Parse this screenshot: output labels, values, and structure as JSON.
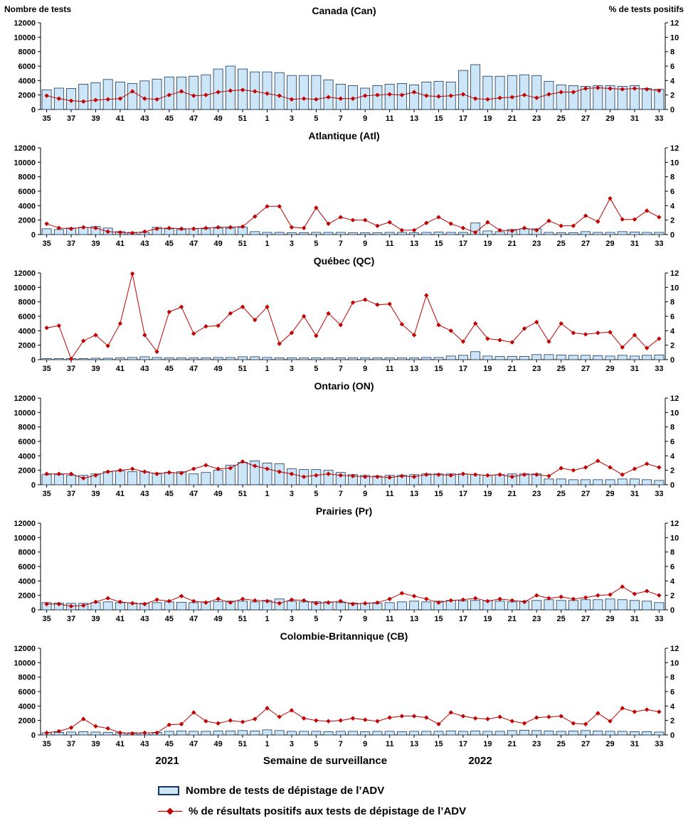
{
  "header": {
    "left_label": "Nombre de tests",
    "right_label": "% de tests positifs"
  },
  "footer": {
    "year_left": "2021",
    "axis_label": "Semaine de surveillance",
    "year_right": "2022"
  },
  "legend": {
    "items": [
      {
        "type": "bar",
        "label": "Nombre de tests de dépistage de l’ADV"
      },
      {
        "type": "line",
        "label": "% de résultats positifs aux tests de dépistage de l’ADV"
      }
    ]
  },
  "colors": {
    "bar_fill": "#CDE6F7",
    "bar_stroke": "#17375E",
    "line": "#C00000",
    "axis": "#000000"
  },
  "chart_data": {
    "type": "bar+line",
    "layout": "6 stacked small-multiple panels, shared x axis of surveillance weeks 35 (2021) to 33 (2022)",
    "x_weeks": [
      35,
      36,
      37,
      38,
      39,
      40,
      41,
      42,
      43,
      44,
      45,
      46,
      47,
      48,
      49,
      50,
      51,
      52,
      1,
      2,
      3,
      4,
      5,
      6,
      7,
      8,
      9,
      10,
      11,
      12,
      13,
      14,
      15,
      16,
      17,
      18,
      19,
      20,
      21,
      22,
      23,
      24,
      25,
      26,
      27,
      28,
      29,
      30,
      31,
      32,
      33
    ],
    "x_tick_labels": [
      "35",
      "37",
      "39",
      "41",
      "43",
      "45",
      "47",
      "49",
      "51",
      "1",
      "3",
      "5",
      "7",
      "9",
      "11",
      "13",
      "15",
      "17",
      "19",
      "21",
      "23",
      "25",
      "27",
      "29",
      "31",
      "33"
    ],
    "left_axis": {
      "label": "Nombre de tests",
      "min": 0,
      "max": 12000,
      "tick_step": 2000
    },
    "right_axis": {
      "label": "% de tests positifs",
      "min": 0,
      "max": 12,
      "tick_step": 2
    },
    "panels": [
      {
        "title": "Canada (Can)",
        "tests": [
          2700,
          2950,
          2900,
          3500,
          3700,
          4150,
          3800,
          3600,
          3950,
          4200,
          4500,
          4500,
          4600,
          4800,
          5600,
          6000,
          5600,
          5200,
          5200,
          5100,
          4700,
          4700,
          4700,
          4100,
          3500,
          3300,
          2950,
          3300,
          3500,
          3600,
          3400,
          3800,
          3900,
          3800,
          5400,
          6200,
          4600,
          4600,
          4700,
          4800,
          4700,
          3900,
          3400,
          3300,
          3200,
          3300,
          3300,
          3200,
          3300,
          2900,
          2800
        ],
        "pct_positive": [
          1.9,
          1.5,
          1.2,
          1.1,
          1.3,
          1.4,
          1.5,
          2.5,
          1.5,
          1.4,
          2.0,
          2.5,
          1.9,
          2.0,
          2.4,
          2.6,
          2.7,
          2.5,
          2.2,
          1.9,
          1.4,
          1.5,
          1.4,
          1.7,
          1.5,
          1.5,
          1.9,
          2.0,
          2.1,
          2.0,
          2.4,
          1.9,
          1.8,
          1.9,
          2.1,
          1.5,
          1.4,
          1.6,
          1.7,
          2.0,
          1.6,
          2.1,
          2.4,
          2.4,
          2.9,
          3.0,
          2.9,
          2.8,
          2.9,
          2.8,
          2.6
        ]
      },
      {
        "title": "Atlantique (Atl)",
        "tests": [
          800,
          700,
          900,
          1000,
          1100,
          900,
          400,
          300,
          300,
          1000,
          800,
          700,
          800,
          800,
          900,
          900,
          1000,
          400,
          300,
          300,
          250,
          250,
          300,
          300,
          300,
          250,
          250,
          250,
          300,
          300,
          250,
          300,
          350,
          300,
          300,
          1600,
          500,
          400,
          700,
          800,
          800,
          300,
          250,
          250,
          400,
          300,
          300,
          400,
          350,
          300,
          300
        ],
        "pct_positive": [
          1.5,
          0.9,
          0.8,
          1.0,
          0.9,
          0.4,
          0.3,
          0.2,
          0.4,
          0.8,
          0.9,
          0.8,
          0.8,
          0.9,
          1.0,
          1.0,
          1.1,
          2.5,
          3.9,
          3.9,
          1.0,
          0.9,
          3.7,
          1.5,
          2.4,
          2.0,
          2.0,
          1.2,
          1.7,
          0.6,
          0.6,
          1.6,
          2.4,
          1.5,
          0.9,
          0.3,
          1.7,
          0.6,
          0.5,
          0.9,
          0.6,
          1.9,
          1.2,
          1.2,
          2.6,
          1.8,
          5.0,
          2.1,
          2.1,
          3.3,
          2.4
        ]
      },
      {
        "title": "Québec (QC)",
        "tests": [
          150,
          150,
          150,
          150,
          200,
          200,
          250,
          300,
          400,
          300,
          250,
          250,
          250,
          250,
          300,
          300,
          400,
          400,
          300,
          250,
          250,
          250,
          250,
          250,
          250,
          250,
          250,
          250,
          250,
          250,
          250,
          300,
          300,
          500,
          600,
          1100,
          500,
          450,
          450,
          450,
          700,
          700,
          650,
          600,
          600,
          550,
          500,
          600,
          500,
          600,
          650
        ],
        "pct_positive": [
          4.4,
          4.7,
          0.1,
          2.6,
          3.4,
          1.9,
          5.0,
          11.9,
          3.4,
          1.1,
          6.6,
          7.3,
          3.6,
          4.6,
          4.7,
          6.4,
          7.3,
          5.5,
          7.3,
          2.2,
          3.7,
          6.0,
          3.3,
          6.4,
          4.8,
          7.9,
          8.3,
          7.6,
          7.7,
          4.9,
          3.4,
          8.9,
          4.8,
          4.0,
          2.5,
          5.0,
          2.9,
          2.7,
          2.4,
          4.3,
          5.2,
          2.5,
          5.0,
          3.7,
          3.5,
          3.7,
          3.8,
          1.7,
          3.4,
          1.6,
          2.9
        ]
      },
      {
        "title": "Ontario (ON)",
        "tests": [
          1400,
          1400,
          1300,
          1300,
          1500,
          1800,
          1900,
          1800,
          1800,
          1600,
          1700,
          1800,
          1500,
          1700,
          2000,
          2700,
          3100,
          3300,
          3000,
          2900,
          2200,
          2100,
          2100,
          2000,
          1700,
          1400,
          1300,
          1200,
          1300,
          1300,
          1400,
          1500,
          1500,
          1500,
          1500,
          1400,
          1300,
          1400,
          1500,
          1500,
          1500,
          800,
          800,
          700,
          700,
          700,
          700,
          800,
          800,
          700,
          600
        ],
        "pct_positive": [
          1.5,
          1.5,
          1.5,
          0.9,
          1.3,
          1.8,
          2.0,
          2.2,
          1.8,
          1.5,
          1.7,
          1.6,
          2.2,
          2.7,
          2.2,
          2.3,
          3.2,
          2.6,
          2.2,
          1.8,
          1.5,
          1.1,
          1.3,
          1.5,
          1.3,
          1.2,
          1.1,
          1.1,
          1.0,
          1.2,
          1.1,
          1.4,
          1.4,
          1.3,
          1.5,
          1.4,
          1.3,
          1.4,
          1.1,
          1.4,
          1.4,
          1.2,
          2.3,
          2.0,
          2.4,
          3.3,
          2.4,
          1.4,
          2.2,
          2.9,
          2.4
        ]
      },
      {
        "title": "Prairies (Pr)",
        "tests": [
          1000,
          950,
          900,
          900,
          1000,
          1100,
          1000,
          950,
          900,
          1000,
          1100,
          1050,
          1000,
          1100,
          1150,
          1200,
          1200,
          1100,
          1300,
          1500,
          1200,
          1100,
          1150,
          1100,
          1000,
          950,
          900,
          900,
          1000,
          1100,
          1200,
          1100,
          1200,
          1300,
          1250,
          1300,
          1250,
          1200,
          1100,
          1200,
          1300,
          1400,
          1300,
          1300,
          1400,
          1400,
          1500,
          1400,
          1300,
          1200,
          1000
        ],
        "pct_positive": [
          0.8,
          0.8,
          0.5,
          0.6,
          1.1,
          1.6,
          1.1,
          0.9,
          0.8,
          1.4,
          1.2,
          1.9,
          1.2,
          1.0,
          1.5,
          1.0,
          1.5,
          1.3,
          1.2,
          0.9,
          1.4,
          1.3,
          0.9,
          1.0,
          1.2,
          0.8,
          0.9,
          1.0,
          1.5,
          2.3,
          1.9,
          1.5,
          1.0,
          1.3,
          1.4,
          1.6,
          1.2,
          1.5,
          1.3,
          1.1,
          2.0,
          1.6,
          1.8,
          1.5,
          1.7,
          2.0,
          2.1,
          3.2,
          2.2,
          2.6,
          2.0
        ]
      },
      {
        "title": "Colombie-Britannique (CB)",
        "tests": [
          300,
          350,
          400,
          450,
          400,
          350,
          300,
          300,
          300,
          350,
          500,
          550,
          500,
          500,
          550,
          550,
          600,
          550,
          700,
          600,
          500,
          500,
          500,
          450,
          500,
          500,
          450,
          500,
          500,
          450,
          500,
          500,
          500,
          550,
          500,
          550,
          500,
          500,
          600,
          650,
          600,
          550,
          500,
          550,
          600,
          550,
          500,
          500,
          450,
          450,
          400
        ],
        "pct_positive": [
          0.3,
          0.5,
          1.0,
          2.2,
          1.2,
          0.9,
          0.3,
          0.2,
          0.3,
          0.3,
          1.4,
          1.5,
          3.1,
          1.9,
          1.6,
          2.0,
          1.8,
          2.2,
          3.7,
          2.5,
          3.4,
          2.3,
          2.0,
          1.9,
          2.0,
          2.3,
          2.1,
          1.9,
          2.4,
          2.6,
          2.6,
          2.4,
          1.5,
          3.1,
          2.6,
          2.3,
          2.2,
          2.5,
          1.9,
          1.6,
          2.4,
          2.5,
          2.6,
          1.6,
          1.5,
          3.0,
          1.9,
          3.7,
          3.2,
          3.5,
          3.2
        ]
      }
    ]
  }
}
